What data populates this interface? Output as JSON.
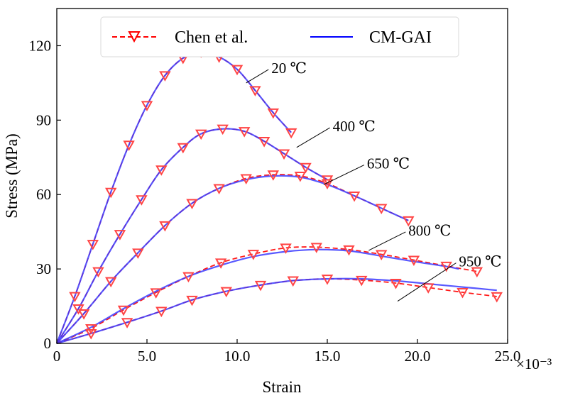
{
  "chart_data": {
    "type": "line",
    "title": "",
    "xlabel": "Strain",
    "ylabel": "Stress (MPa)",
    "x_scale_label": "×10⁻³",
    "xlim": [
      0,
      25
    ],
    "ylim": [
      0,
      135
    ],
    "xticks": [
      0,
      5,
      10,
      15,
      20,
      25
    ],
    "xtick_labels": [
      "0",
      "5.0",
      "10.0",
      "15.0",
      "20.0",
      "25.0"
    ],
    "yticks": [
      0,
      30,
      60,
      90,
      120
    ],
    "ytick_labels": [
      "0",
      "30",
      "60",
      "90",
      "120"
    ],
    "grid": false,
    "legend": {
      "position": "top-center",
      "entries": [
        {
          "label": "Chen et al.",
          "color": "#ff0000",
          "style": "dashed",
          "marker": "triangle-down"
        },
        {
          "label": "CM-GAI",
          "color": "#0000ff",
          "style": "solid",
          "marker": "none"
        }
      ]
    },
    "series": [
      {
        "name": "Chen et al.",
        "temperature": "20",
        "color": "#ff0000",
        "x": [
          0,
          1.0,
          2.0,
          3.0,
          4.0,
          5.0,
          6.0,
          7.0,
          8.0,
          9.0,
          10.0,
          11.0,
          12.0,
          13.0
        ],
        "y": [
          0,
          19,
          40,
          61,
          80,
          96,
          108,
          115,
          117.5,
          115.5,
          110.5,
          102,
          93,
          85
        ]
      },
      {
        "name": "CM-GAI",
        "temperature": "20",
        "color": "#3c3cff",
        "x": [
          0,
          1.0,
          2.0,
          3.0,
          4.0,
          5.0,
          6.0,
          7.0,
          8.0,
          9.0,
          10.0,
          11.0,
          12.0,
          13.0
        ],
        "y": [
          0,
          19,
          40,
          61,
          80,
          96,
          108,
          115,
          117.5,
          115.5,
          110.5,
          102,
          93,
          85
        ]
      },
      {
        "name": "Chen et al.",
        "temperature": "400",
        "color": "#ff0000",
        "x": [
          0,
          1.2,
          2.3,
          3.5,
          4.7,
          5.8,
          7.0,
          8.0,
          9.2,
          10.4,
          11.5,
          12.6,
          13.8,
          15.0
        ],
        "y": [
          0,
          14,
          29,
          44,
          58,
          70,
          79,
          84.5,
          86.5,
          85.5,
          81.5,
          76.5,
          71,
          66
        ]
      },
      {
        "name": "CM-GAI",
        "temperature": "400",
        "color": "#3c3cff",
        "x": [
          0,
          1.2,
          2.3,
          3.5,
          4.7,
          5.8,
          7.0,
          8.0,
          9.2,
          10.4,
          11.5,
          12.6,
          13.8,
          15.0
        ],
        "y": [
          0,
          14,
          29,
          44,
          58,
          70,
          79,
          84.5,
          86.5,
          85.5,
          81.5,
          76.5,
          71,
          66
        ]
      },
      {
        "name": "Chen et al.",
        "temperature": "650",
        "color": "#ff0000",
        "x": [
          0,
          1.5,
          3.0,
          4.5,
          6.0,
          7.5,
          9.0,
          10.5,
          12.0,
          13.5,
          15.0,
          16.5,
          18.0,
          19.5
        ],
        "y": [
          0,
          12,
          25,
          36.5,
          47.5,
          56.5,
          62.5,
          66.5,
          68,
          67.5,
          64.5,
          59.5,
          54.5,
          49.5
        ]
      },
      {
        "name": "CM-GAI",
        "temperature": "650",
        "color": "#3c3cff",
        "x": [
          0,
          1.5,
          3.0,
          4.5,
          6.0,
          7.5,
          9.0,
          10.5,
          12.0,
          13.5,
          15.0,
          16.5,
          18.0,
          19.5
        ],
        "y": [
          0,
          12,
          25,
          36.5,
          47.5,
          56.5,
          62.5,
          66,
          67.5,
          67,
          64,
          59.5,
          54.5,
          49.5
        ]
      },
      {
        "name": "Chen et al.",
        "temperature": "800",
        "color": "#ff0000",
        "x": [
          0,
          1.9,
          3.7,
          5.5,
          7.3,
          9.1,
          10.9,
          12.7,
          14.4,
          16.2,
          18.0,
          19.8,
          21.6,
          23.3
        ],
        "y": [
          0,
          6,
          13.5,
          20.5,
          27,
          32.5,
          36,
          38.5,
          38.8,
          37.8,
          35.9,
          33.6,
          31.2,
          29
        ]
      },
      {
        "name": "CM-GAI",
        "temperature": "800",
        "color": "#3c3cff",
        "x": [
          0,
          1.9,
          3.7,
          5.5,
          7.3,
          9.1,
          10.9,
          12.7,
          14.4,
          16.2,
          18.0,
          19.8,
          21.6,
          22.3
        ],
        "y": [
          0,
          6.5,
          14,
          21,
          27,
          31.5,
          35,
          37,
          37.8,
          37.3,
          35.2,
          33,
          31,
          30
        ]
      },
      {
        "name": "Chen et al.",
        "temperature": "950",
        "color": "#ff0000",
        "x": [
          0,
          1.9,
          3.9,
          5.8,
          7.5,
          9.4,
          11.3,
          13.1,
          15.0,
          16.9,
          18.8,
          20.6,
          22.5,
          24.4
        ],
        "y": [
          0,
          4,
          8.5,
          13,
          17.5,
          21,
          23.5,
          25.3,
          26,
          25.5,
          24.3,
          22.5,
          20.6,
          18.9
        ]
      },
      {
        "name": "CM-GAI",
        "temperature": "950",
        "color": "#3c3cff",
        "x": [
          0,
          1.9,
          3.9,
          5.8,
          7.5,
          9.4,
          11.3,
          13.1,
          15.0,
          16.9,
          18.8,
          20.6,
          22.5,
          24.4
        ],
        "y": [
          0,
          4,
          8.5,
          13,
          17.5,
          21,
          23.5,
          25.3,
          26,
          26,
          25.2,
          24,
          22.7,
          21.4
        ]
      }
    ],
    "annotations": [
      {
        "text": "20 ℃",
        "target": [
          10.5,
          105
        ],
        "label_at": [
          11.9,
          111
        ]
      },
      {
        "text": "400 ℃",
        "target": [
          13.3,
          79
        ],
        "label_at": [
          15.3,
          87.5
        ]
      },
      {
        "text": "650 ℃",
        "target": [
          14.8,
          64
        ],
        "label_at": [
          17.2,
          72.5
        ]
      },
      {
        "text": "800 ℃",
        "target": [
          17.3,
          37.5
        ],
        "label_at": [
          19.5,
          45.5
        ]
      },
      {
        "text": "950 ℃",
        "target": [
          18.9,
          17
        ],
        "label_at": [
          22.3,
          33
        ]
      }
    ]
  }
}
